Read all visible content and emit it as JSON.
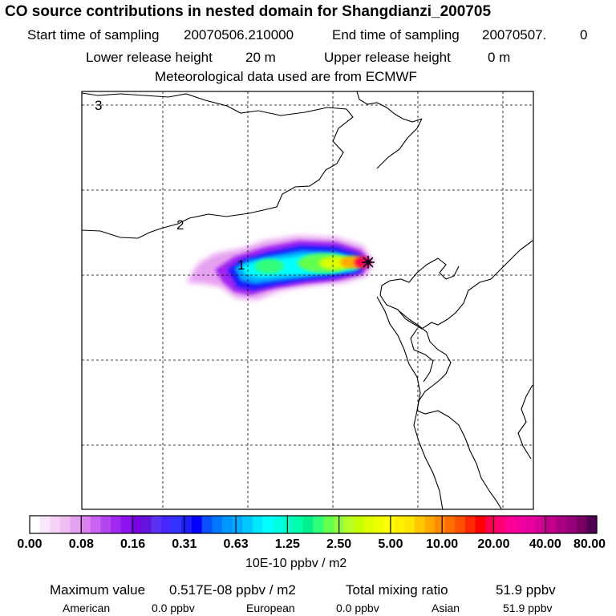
{
  "chart_data": {
    "type": "heatmap",
    "title": "CO  source contributions in nested domain for Shangdianzi_200705",
    "start_label": "Start time of sampling",
    "start_value": "20070506.210000",
    "end_label": "End time of sampling",
    "end_value": "20070507.",
    "end_extra": "0",
    "lower_label": "Lower release height",
    "lower_value": "20 m",
    "upper_label": "Upper release height",
    "upper_value": "0 m",
    "met_note": "Meteorological data used are from ECMWF",
    "region_labels": [
      "1",
      "2",
      "3"
    ],
    "colorbar_ticks": [
      "0.00",
      "0.08",
      "0.16",
      "0.31",
      "0.63",
      "1.25",
      "2.50",
      "5.00",
      "10.00",
      "20.00",
      "40.00",
      "80.00"
    ],
    "colorbar_units": "10E-10 ppbv / m2",
    "colorbar_colors": [
      "#ffffff",
      "#fae6fa",
      "#f5d2f5",
      "#f0bef0",
      "#e6a0f0",
      "#dc82f0",
      "#c864f0",
      "#b446f0",
      "#a028f0",
      "#8c14f0",
      "#7a00e6",
      "#6414dc",
      "#5a32f0",
      "#4628ff",
      "#3232ff",
      "#1e1eff",
      "#0000ff",
      "#0a50ff",
      "#0078ff",
      "#0096ff",
      "#00aaff",
      "#00c8ff",
      "#00e6ff",
      "#00ffff",
      "#00ffe6",
      "#00ffc8",
      "#00ffaa",
      "#00f08c",
      "#32ff78",
      "#64ff50",
      "#8cff3c",
      "#b4ff28",
      "#c8ff00",
      "#dcff00",
      "#f0ff00",
      "#ffff00",
      "#fff000",
      "#ffe600",
      "#ffc800",
      "#ffaa00",
      "#ff8c00",
      "#ff6e00",
      "#ff5000",
      "#ff2800",
      "#ff0000",
      "#ff0050",
      "#ff0078",
      "#ff0096",
      "#f000a0",
      "#e600a0",
      "#d20096",
      "#be008c",
      "#aa0082",
      "#960078",
      "#780064",
      "#500050"
    ],
    "max_label": "Maximum value",
    "max_value": "0.517E-08 ppbv / m2",
    "total_label": "Total mixing ratio",
    "total_value": "51.9 ppbv",
    "regions": [
      {
        "name": "American",
        "value": "0.0 ppbv"
      },
      {
        "name": "European",
        "value": "0.0 ppbv"
      },
      {
        "name": "Asian",
        "value": "51.9 ppbv"
      }
    ]
  }
}
